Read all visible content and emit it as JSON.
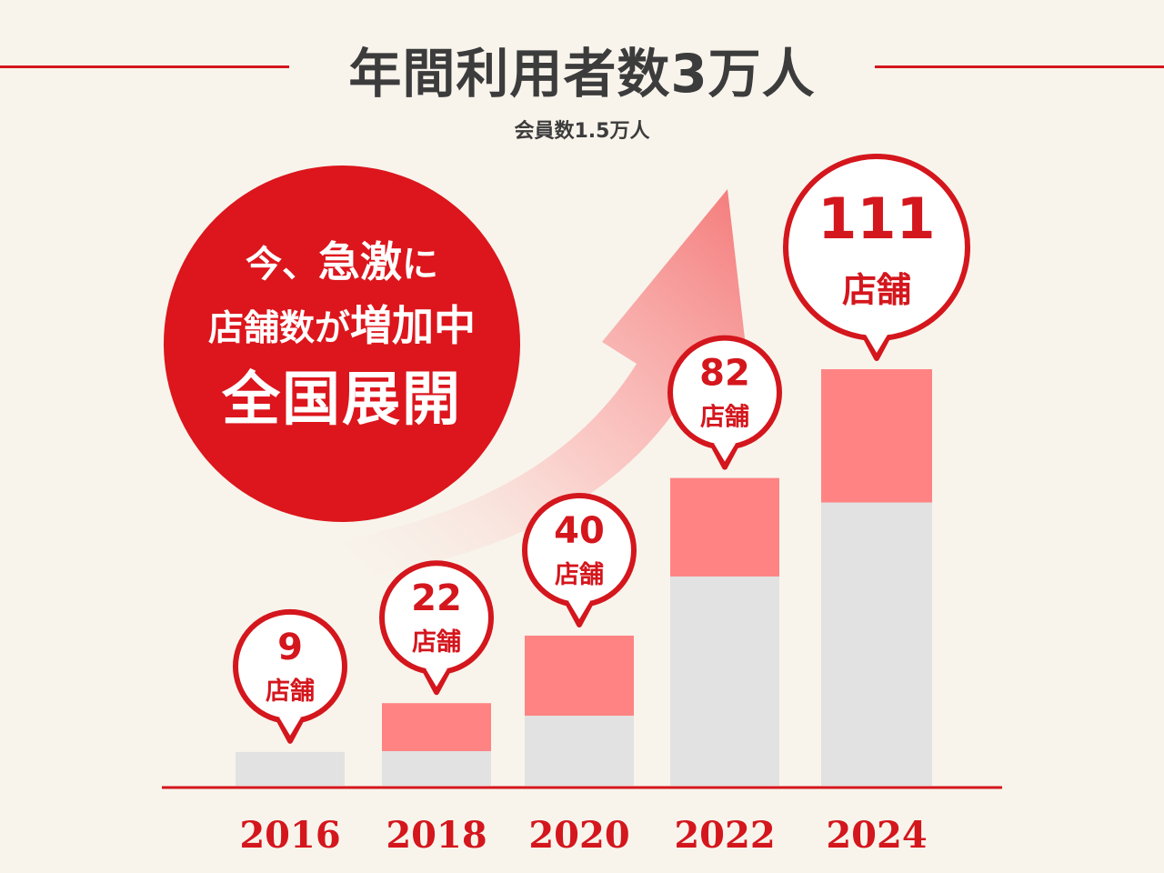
{
  "header": {
    "title": "年間利用者数3万人",
    "subtitle": "会員数1.5万人"
  },
  "badge": {
    "line1_pre": "今、",
    "line1_big": "急激",
    "line1_post": "に",
    "line2_pre": "店舗数が",
    "line2_big": "増加中",
    "line3": "全国展開"
  },
  "colors": {
    "accent": "#d4161d",
    "bar_top": "#ff8383",
    "bar_base": "#e2e2e2",
    "background": "#f8f4ec"
  },
  "chart_data": {
    "type": "bar",
    "categories": [
      "2016",
      "2018",
      "2020",
      "2022",
      "2024"
    ],
    "values": [
      9,
      22,
      40,
      82,
      111
    ],
    "unit_label": "店舗"
  }
}
